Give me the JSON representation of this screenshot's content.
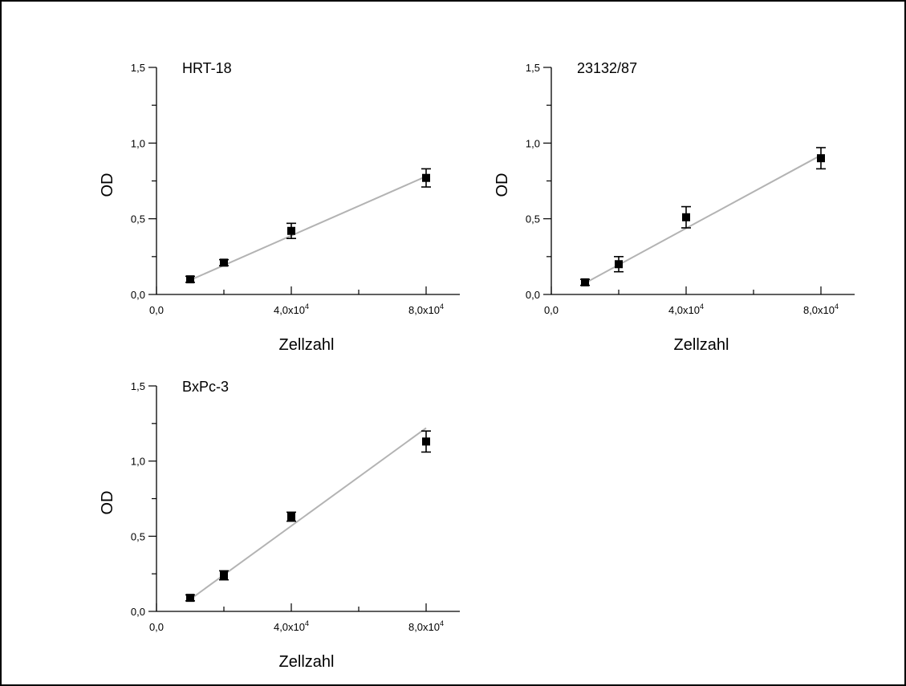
{
  "chart_data": [
    {
      "type": "scatter",
      "title": "HRT-18",
      "xlabel": "Zellzahl",
      "ylabel": "OD",
      "xlim": [
        0,
        90000
      ],
      "ylim": [
        0,
        1.5
      ],
      "x_tick_labels": [
        "0,0",
        "4,0x10",
        "8,0x10"
      ],
      "x_tick_exponents": [
        "",
        "4",
        "4"
      ],
      "y_tick_labels": [
        "0,0",
        "0,5",
        "1,0",
        "1,5"
      ],
      "grid": false,
      "series": [
        {
          "x": [
            10000,
            20000,
            40000,
            80000
          ],
          "y": [
            0.1,
            0.21,
            0.42,
            0.77
          ],
          "error": [
            0.02,
            0.02,
            0.05,
            0.06
          ]
        }
      ],
      "fit_line": {
        "x": [
          10000,
          80000
        ],
        "y": [
          0.095,
          0.78
        ]
      }
    },
    {
      "type": "scatter",
      "title": "23132/87",
      "xlabel": "Zellzahl",
      "ylabel": "OD",
      "xlim": [
        0,
        90000
      ],
      "ylim": [
        0,
        1.5
      ],
      "x_tick_labels": [
        "0,0",
        "4,0x10",
        "8,0x10"
      ],
      "x_tick_exponents": [
        "",
        "4",
        "4"
      ],
      "y_tick_labels": [
        "0,0",
        "0,5",
        "1,0",
        "1,5"
      ],
      "grid": false,
      "series": [
        {
          "x": [
            10000,
            20000,
            40000,
            80000
          ],
          "y": [
            0.08,
            0.2,
            0.51,
            0.9
          ],
          "error": [
            0.02,
            0.05,
            0.07,
            0.07
          ]
        }
      ],
      "fit_line": {
        "x": [
          10000,
          80000
        ],
        "y": [
          0.075,
          0.92
        ]
      }
    },
    {
      "type": "scatter",
      "title": "BxPc-3",
      "xlabel": "Zellzahl",
      "ylabel": "OD",
      "xlim": [
        0,
        90000
      ],
      "ylim": [
        0,
        1.5
      ],
      "x_tick_labels": [
        "0,0",
        "4,0x10",
        "8,0x10"
      ],
      "x_tick_exponents": [
        "",
        "4",
        "4"
      ],
      "y_tick_labels": [
        "0,0",
        "0,5",
        "1,0",
        "1,5"
      ],
      "grid": false,
      "series": [
        {
          "x": [
            10000,
            20000,
            40000,
            80000
          ],
          "y": [
            0.09,
            0.24,
            0.63,
            1.13
          ],
          "error": [
            0.02,
            0.03,
            0.03,
            0.07
          ]
        }
      ],
      "fit_line": {
        "x": [
          10000,
          80000
        ],
        "y": [
          0.08,
          1.22
        ]
      }
    }
  ],
  "colors": {
    "marker": "#000000",
    "axis": "#000000",
    "fit_line": "#b3b3b3",
    "background": "#ffffff",
    "frame": "#000000"
  }
}
